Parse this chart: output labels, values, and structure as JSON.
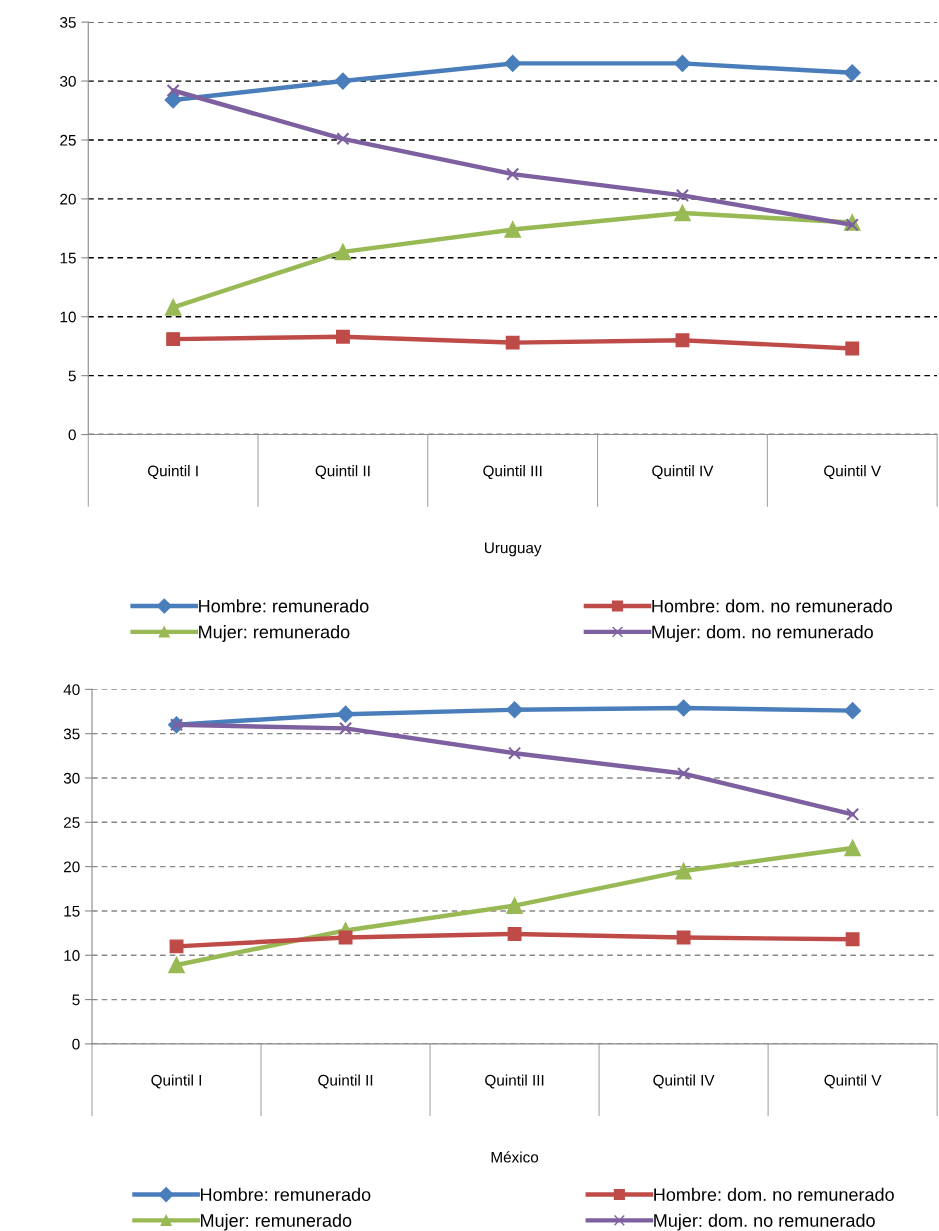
{
  "chart_data": [
    {
      "type": "line",
      "xlabel": "Uruguay",
      "categories": [
        "Quintil I",
        "Quintil II",
        "Quintil III",
        "Quintil IV",
        "Quintil V"
      ],
      "ylim": [
        0,
        35
      ],
      "yticks": [
        0,
        5,
        10,
        15,
        20,
        25,
        30,
        35
      ],
      "grid": "y",
      "legend": "bottom",
      "line_style": "solid",
      "series": [
        {
          "name": "Hombre: remunerado",
          "color": "#4a7ebb",
          "marker": "diamond",
          "values": [
            28.4,
            30.0,
            31.5,
            31.5,
            30.7
          ]
        },
        {
          "name": "Hombre: dom. no remunerado",
          "color": "#be4b48",
          "marker": "square",
          "values": [
            8.1,
            8.3,
            7.8,
            8.0,
            7.3
          ]
        },
        {
          "name": "Mujer: remunerado",
          "color": "#98b954",
          "marker": "triangle",
          "values": [
            10.8,
            15.5,
            17.4,
            18.8,
            18.0
          ]
        },
        {
          "name": "Mujer: dom. no remunerado",
          "color": "#7d60a0",
          "marker": "cross",
          "values": [
            29.2,
            25.1,
            22.1,
            20.3,
            17.8
          ]
        }
      ]
    },
    {
      "type": "line",
      "xlabel": "México",
      "categories": [
        "Quintil I",
        "Quintil II",
        "Quintil III",
        "Quintil IV",
        "Quintil V"
      ],
      "ylim": [
        0,
        40
      ],
      "yticks": [
        0,
        5,
        10,
        15,
        20,
        25,
        30,
        35,
        40
      ],
      "grid": "y",
      "legend": "bottom",
      "line_style": "solid",
      "series": [
        {
          "name": "Hombre: remunerado",
          "color": "#4a7ebb",
          "marker": "diamond",
          "values": [
            36.0,
            37.2,
            37.7,
            37.9,
            37.6
          ]
        },
        {
          "name": "Hombre: dom. no remunerado",
          "color": "#be4b48",
          "marker": "square",
          "values": [
            11.0,
            12.0,
            12.4,
            12.0,
            11.8
          ]
        },
        {
          "name": "Mujer: remunerado",
          "color": "#98b954",
          "marker": "triangle",
          "values": [
            8.9,
            12.8,
            15.6,
            19.5,
            22.1
          ]
        },
        {
          "name": "Mujer: dom. no remunerado",
          "color": "#7d60a0",
          "marker": "cross",
          "values": [
            36.0,
            35.6,
            32.8,
            30.5,
            25.9
          ]
        }
      ]
    }
  ]
}
